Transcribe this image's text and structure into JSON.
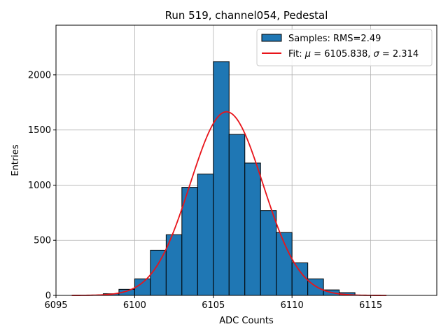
{
  "chart_data": {
    "type": "bar",
    "title": "Run 519, channel054, Pedestal",
    "xlabel": "ADC Counts",
    "ylabel": "Entries",
    "xlim": [
      6095,
      6119.2
    ],
    "ylim": [
      0,
      2450
    ],
    "xticks": [
      6095,
      6100,
      6105,
      6110,
      6115
    ],
    "yticks": [
      0,
      500,
      1000,
      1500,
      2000
    ],
    "grid": true,
    "legend_position": "top-right",
    "histogram": {
      "name": "Samples: RMS=2.49",
      "color": "#1f77b4",
      "edge_color": "#000000",
      "bin_width": 1,
      "bin_starts": [
        6098,
        6099,
        6100,
        6101,
        6102,
        6103,
        6104,
        6105,
        6106,
        6107,
        6108,
        6109,
        6110,
        6111,
        6112,
        6113
      ],
      "counts": [
        15,
        55,
        150,
        410,
        550,
        980,
        1100,
        2120,
        1460,
        1200,
        770,
        570,
        295,
        150,
        50,
        25
      ]
    },
    "fit": {
      "name": "Fit: μ = 6105.838, σ = 2.314",
      "name_parts": [
        "Fit: ",
        "μ",
        " = 6105.838, ",
        "σ",
        " = 2.314"
      ],
      "color": "#e8141a",
      "mu": 6105.838,
      "sigma": 2.314,
      "amplitude": 1665,
      "x_range": [
        6096,
        6116
      ]
    }
  }
}
